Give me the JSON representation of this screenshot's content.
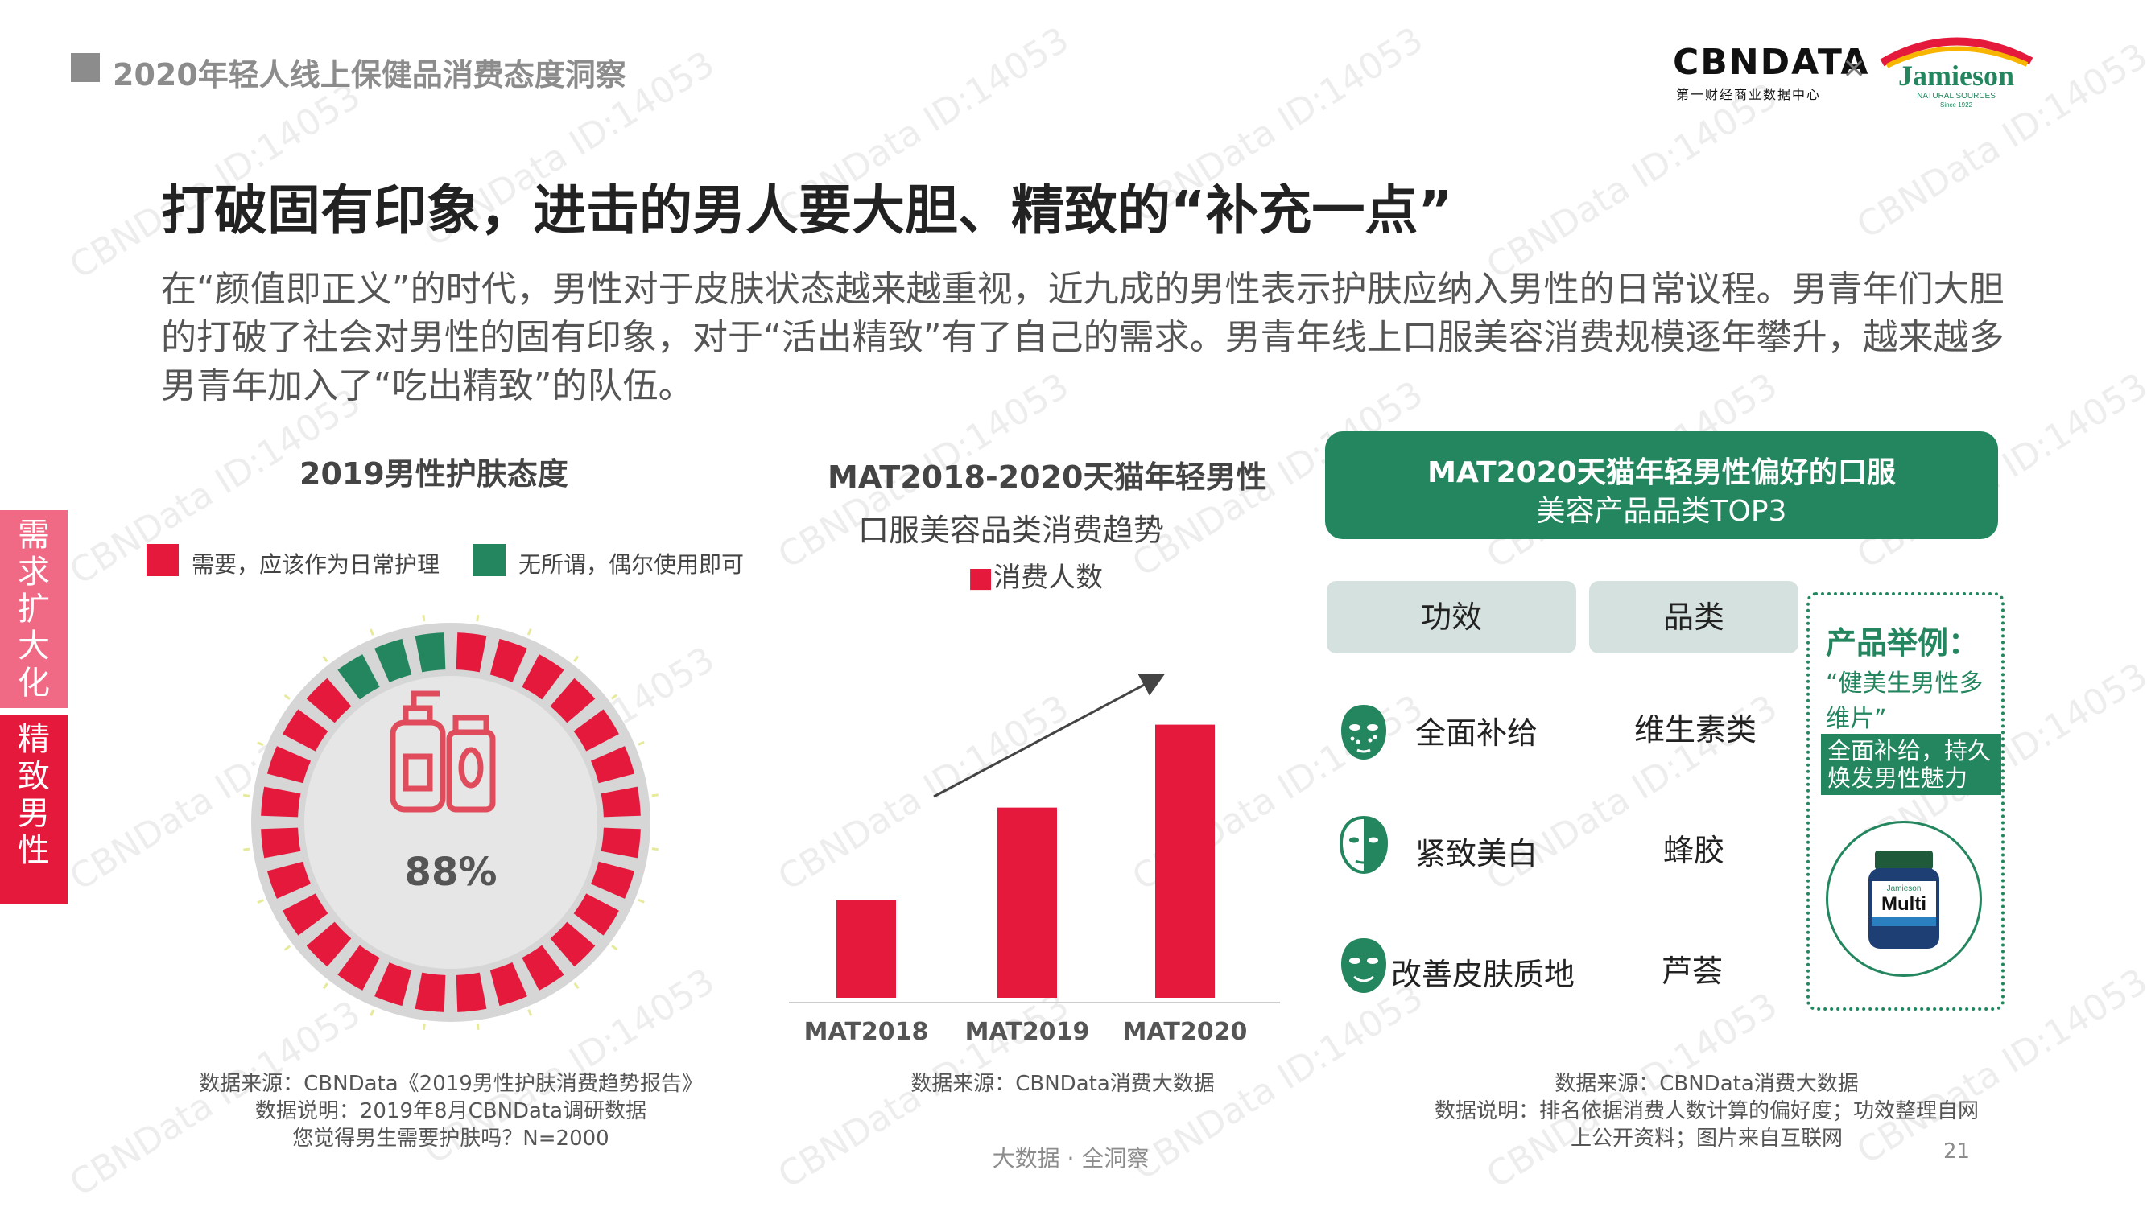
{
  "header": {
    "title": "2020年轻人线上保健品消费态度洞察",
    "brand_logo": "CBNDATA",
    "brand_logo_sub": "第一财经商业数据中心",
    "separator": "×",
    "partner_logo": "Jamieson",
    "partner_logo_sub": "NATURAL SOURCES",
    "partner_logo_since": "Since 1922"
  },
  "main_title": "打破固有印象，进击的男人要大胆、精致的“补充一点”",
  "intro": "在“颜值即正义”的时代，男性对于皮肤状态越来越重视，近九成的男性表示护肤应纳入男性的日常议程。男青年们大胆的打破了社会对男性的固有印象，对于“活出精致”有了自己的需求。男青年线上口服美容消费规模逐年攀升，越来越多男青年加入了“吃出精致”的队伍。",
  "side_tabs": [
    {
      "label": "需求扩大化"
    },
    {
      "label": "精致男性"
    }
  ],
  "panel1": {
    "title": "2019男性护肤态度",
    "legend": [
      {
        "label": "需要，应该作为日常护理",
        "color": "#e5193c"
      },
      {
        "label": "无所谓，偶尔使用即可",
        "color": "#23865f"
      }
    ],
    "percent_label": "88%",
    "icon": "skincare-bottles-icon",
    "note": [
      "数据来源：CBNData《2019男性护肤消费趋势报告》",
      "数据说明：2019年8月CBNData调研数据",
      "您觉得男生需要护肤吗？N=2000"
    ]
  },
  "chart_data": {
    "type": "bar",
    "title": "MAT2018-2020天猫年轻男性口服美容品类消费趋势",
    "categories": [
      "MAT2018",
      "MAT2019",
      "MAT2020"
    ],
    "series": [
      {
        "name": "消费人数",
        "values": [
          1.0,
          1.95,
          2.8
        ],
        "color": "#e5193c"
      }
    ],
    "ylim": [
      0,
      3.3
    ],
    "grid": false,
    "legend_position": "top-center",
    "trend_arrow": true,
    "pie": {
      "type": "pie",
      "title": "2019男性护肤态度",
      "segments_total": 28,
      "share_need": 0.88,
      "share_casual": 0.12
    }
  },
  "panel2": {
    "title_line1": "MAT2018-2020天猫年轻男性",
    "title_line2": "口服美容品类消费趋势",
    "legend_label": "消费人数",
    "legend_marker": "■",
    "note": [
      "数据来源：CBNData消费大数据"
    ]
  },
  "panel3": {
    "header_line1": "MAT2020天猫年轻男性偏好的口服",
    "header_line2": "美容产品品类TOP3",
    "col_effect": "功效",
    "col_category": "品类",
    "rows": [
      {
        "effect": "全面补给",
        "category": "维生素类",
        "icon": "face-mask-dots-icon"
      },
      {
        "effect": "紧致美白",
        "category": "蜂胶",
        "icon": "face-half-mask-icon"
      },
      {
        "effect": "改善皮肤质地",
        "category": "芦荟",
        "icon": "face-smile-mask-icon"
      }
    ],
    "product": {
      "heading": "产品举例：",
      "name": "“健美生男性多维片”",
      "tag": "全面补给，持久焕发男性魅力",
      "bottle_label": "Multi",
      "bottle_brand": "Jamieson",
      "icon": "vitamin-bottle-icon"
    },
    "note": [
      "数据来源：CBNData消费大数据",
      "数据说明：排名依据消费人数计算的偏好度；功效整理自网",
      "上公开资料；图片来自互联网"
    ]
  },
  "footer": "大数据 · 全洞察",
  "page_number": "21",
  "watermark": "CBNData ID:14053"
}
